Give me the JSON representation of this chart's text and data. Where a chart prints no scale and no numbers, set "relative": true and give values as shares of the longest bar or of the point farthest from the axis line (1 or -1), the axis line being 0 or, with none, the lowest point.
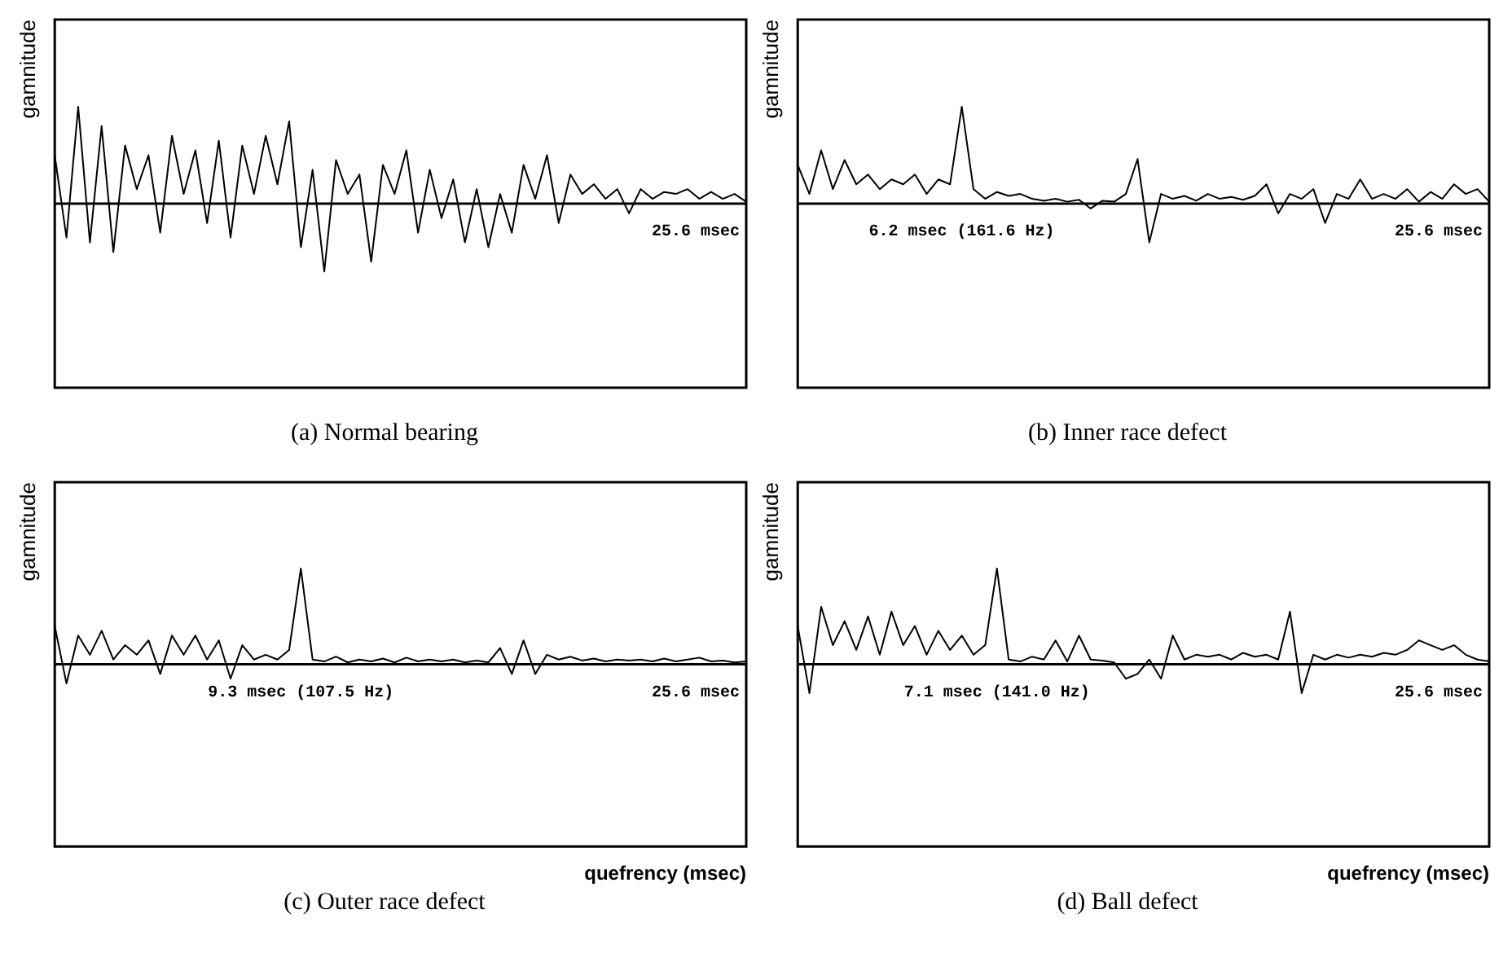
{
  "chart_data": [
    {
      "type": "line",
      "title": "(a)  Normal bearing",
      "ylabel": "gamnitude",
      "relative": true,
      "color": "#000000",
      "annotations": [
        "25.6 msec"
      ],
      "categories": [
        null,
        null,
        null,
        null,
        null,
        null,
        null,
        null,
        null,
        null,
        null,
        null,
        null,
        null,
        null,
        null,
        null,
        null,
        null,
        null,
        null,
        null,
        null,
        null,
        null,
        null,
        null,
        null,
        null,
        null,
        null,
        null,
        null,
        null,
        null,
        null,
        null,
        null,
        null,
        null,
        null,
        null,
        null,
        null,
        null,
        null,
        null,
        null,
        null,
        null,
        null,
        null,
        null,
        null,
        null,
        null,
        null,
        null,
        null,
        null
      ],
      "values": [
        0.5,
        -0.35,
        1.0,
        -0.4,
        0.8,
        -0.5,
        0.6,
        0.15,
        0.5,
        -0.3,
        0.7,
        0.1,
        0.55,
        -0.2,
        0.65,
        -0.35,
        0.6,
        0.1,
        0.7,
        0.2,
        0.85,
        -0.45,
        0.35,
        -0.7,
        0.45,
        0.1,
        0.3,
        -0.6,
        0.4,
        0.1,
        0.55,
        -0.3,
        0.35,
        -0.15,
        0.25,
        -0.4,
        0.15,
        -0.45,
        0.1,
        -0.3,
        0.4,
        0.05,
        0.5,
        -0.2,
        0.3,
        0.1,
        0.2,
        0.05,
        0.15,
        -0.1,
        0.15,
        0.05,
        0.12,
        0.1,
        0.15,
        0.05,
        0.12,
        0.05,
        0.1,
        0.02
      ]
    },
    {
      "type": "line",
      "title": "(b)  Inner race defect",
      "ylabel": "gamnitude",
      "relative": true,
      "color": "#000000",
      "annotations": [
        "6.2 msec (161.6 Hz)",
        "25.6 msec"
      ],
      "categories": [
        null,
        null,
        null,
        null,
        null,
        null,
        null,
        null,
        null,
        null,
        null,
        null,
        null,
        null,
        null,
        null,
        null,
        null,
        null,
        null,
        null,
        null,
        null,
        null,
        null,
        null,
        null,
        null,
        null,
        null,
        null,
        null,
        null,
        null,
        null,
        null,
        null,
        null,
        null,
        null,
        null,
        null,
        null,
        null,
        null,
        null,
        null,
        null,
        null,
        null,
        null,
        null,
        null,
        null,
        null,
        null,
        null,
        null,
        null,
        null
      ],
      "values": [
        0.4,
        0.1,
        0.55,
        0.15,
        0.45,
        0.2,
        0.3,
        0.15,
        0.25,
        0.2,
        0.3,
        0.1,
        0.25,
        0.2,
        1.0,
        0.15,
        0.05,
        0.12,
        0.08,
        0.1,
        0.05,
        0.03,
        0.05,
        0.02,
        0.04,
        -0.05,
        0.03,
        0.02,
        0.1,
        0.46,
        -0.4,
        0.1,
        0.05,
        0.08,
        0.03,
        0.1,
        0.05,
        0.07,
        0.04,
        0.08,
        0.2,
        -0.1,
        0.1,
        0.05,
        0.15,
        -0.2,
        0.1,
        0.05,
        0.25,
        0.05,
        0.1,
        0.05,
        0.15,
        0.02,
        0.12,
        0.05,
        0.2,
        0.1,
        0.15,
        0.02
      ]
    },
    {
      "type": "line",
      "title": "(c)  Outer race defect",
      "ylabel": "gamnitude",
      "xlabel": "quefrency (msec)",
      "relative": true,
      "color": "#000000",
      "annotations": [
        "9.3 msec (107.5 Hz)",
        "25.6 msec"
      ],
      "categories": [
        null,
        null,
        null,
        null,
        null,
        null,
        null,
        null,
        null,
        null,
        null,
        null,
        null,
        null,
        null,
        null,
        null,
        null,
        null,
        null,
        null,
        null,
        null,
        null,
        null,
        null,
        null,
        null,
        null,
        null,
        null,
        null,
        null,
        null,
        null,
        null,
        null,
        null,
        null,
        null,
        null,
        null,
        null,
        null,
        null,
        null,
        null,
        null,
        null,
        null,
        null,
        null,
        null,
        null,
        null,
        null,
        null,
        null,
        null,
        null
      ],
      "values": [
        0.4,
        -0.2,
        0.3,
        0.1,
        0.35,
        0.05,
        0.2,
        0.1,
        0.25,
        -0.1,
        0.3,
        0.1,
        0.3,
        0.05,
        0.25,
        -0.15,
        0.2,
        0.05,
        0.1,
        0.05,
        0.15,
        1.0,
        0.05,
        0.03,
        0.08,
        0.02,
        0.05,
        0.03,
        0.06,
        0.02,
        0.07,
        0.03,
        0.05,
        0.03,
        0.05,
        0.02,
        0.04,
        0.02,
        0.17,
        -0.1,
        0.25,
        -0.1,
        0.1,
        0.05,
        0.08,
        0.04,
        0.06,
        0.03,
        0.05,
        0.04,
        0.05,
        0.03,
        0.06,
        0.03,
        0.05,
        0.07,
        0.03,
        0.04,
        0.02,
        0.03
      ]
    },
    {
      "type": "line",
      "title": "(d)  Ball defect",
      "ylabel": "gamnitude",
      "xlabel": "quefrency (msec)",
      "relative": true,
      "color": "#000000",
      "annotations": [
        "7.1 msec (141.0 Hz)",
        "25.6 msec"
      ],
      "categories": [
        null,
        null,
        null,
        null,
        null,
        null,
        null,
        null,
        null,
        null,
        null,
        null,
        null,
        null,
        null,
        null,
        null,
        null,
        null,
        null,
        null,
        null,
        null,
        null,
        null,
        null,
        null,
        null,
        null,
        null,
        null,
        null,
        null,
        null,
        null,
        null,
        null,
        null,
        null,
        null,
        null,
        null,
        null,
        null,
        null,
        null,
        null,
        null,
        null,
        null,
        null,
        null,
        null,
        null,
        null,
        null,
        null,
        null,
        null,
        null
      ],
      "values": [
        0.4,
        -0.3,
        0.6,
        0.2,
        0.45,
        0.15,
        0.5,
        0.1,
        0.55,
        0.2,
        0.4,
        0.1,
        0.35,
        0.15,
        0.3,
        0.1,
        0.2,
        1.0,
        0.05,
        0.03,
        0.08,
        0.05,
        0.25,
        0.03,
        0.3,
        0.05,
        0.04,
        0.02,
        -0.15,
        -0.1,
        0.05,
        -0.15,
        0.3,
        0.05,
        0.1,
        0.08,
        0.1,
        0.05,
        0.12,
        0.08,
        0.1,
        0.05,
        0.55,
        -0.3,
        0.1,
        0.05,
        0.1,
        0.07,
        0.1,
        0.08,
        0.12,
        0.1,
        0.15,
        0.25,
        0.2,
        0.15,
        0.2,
        0.1,
        0.05,
        0.03
      ]
    }
  ]
}
